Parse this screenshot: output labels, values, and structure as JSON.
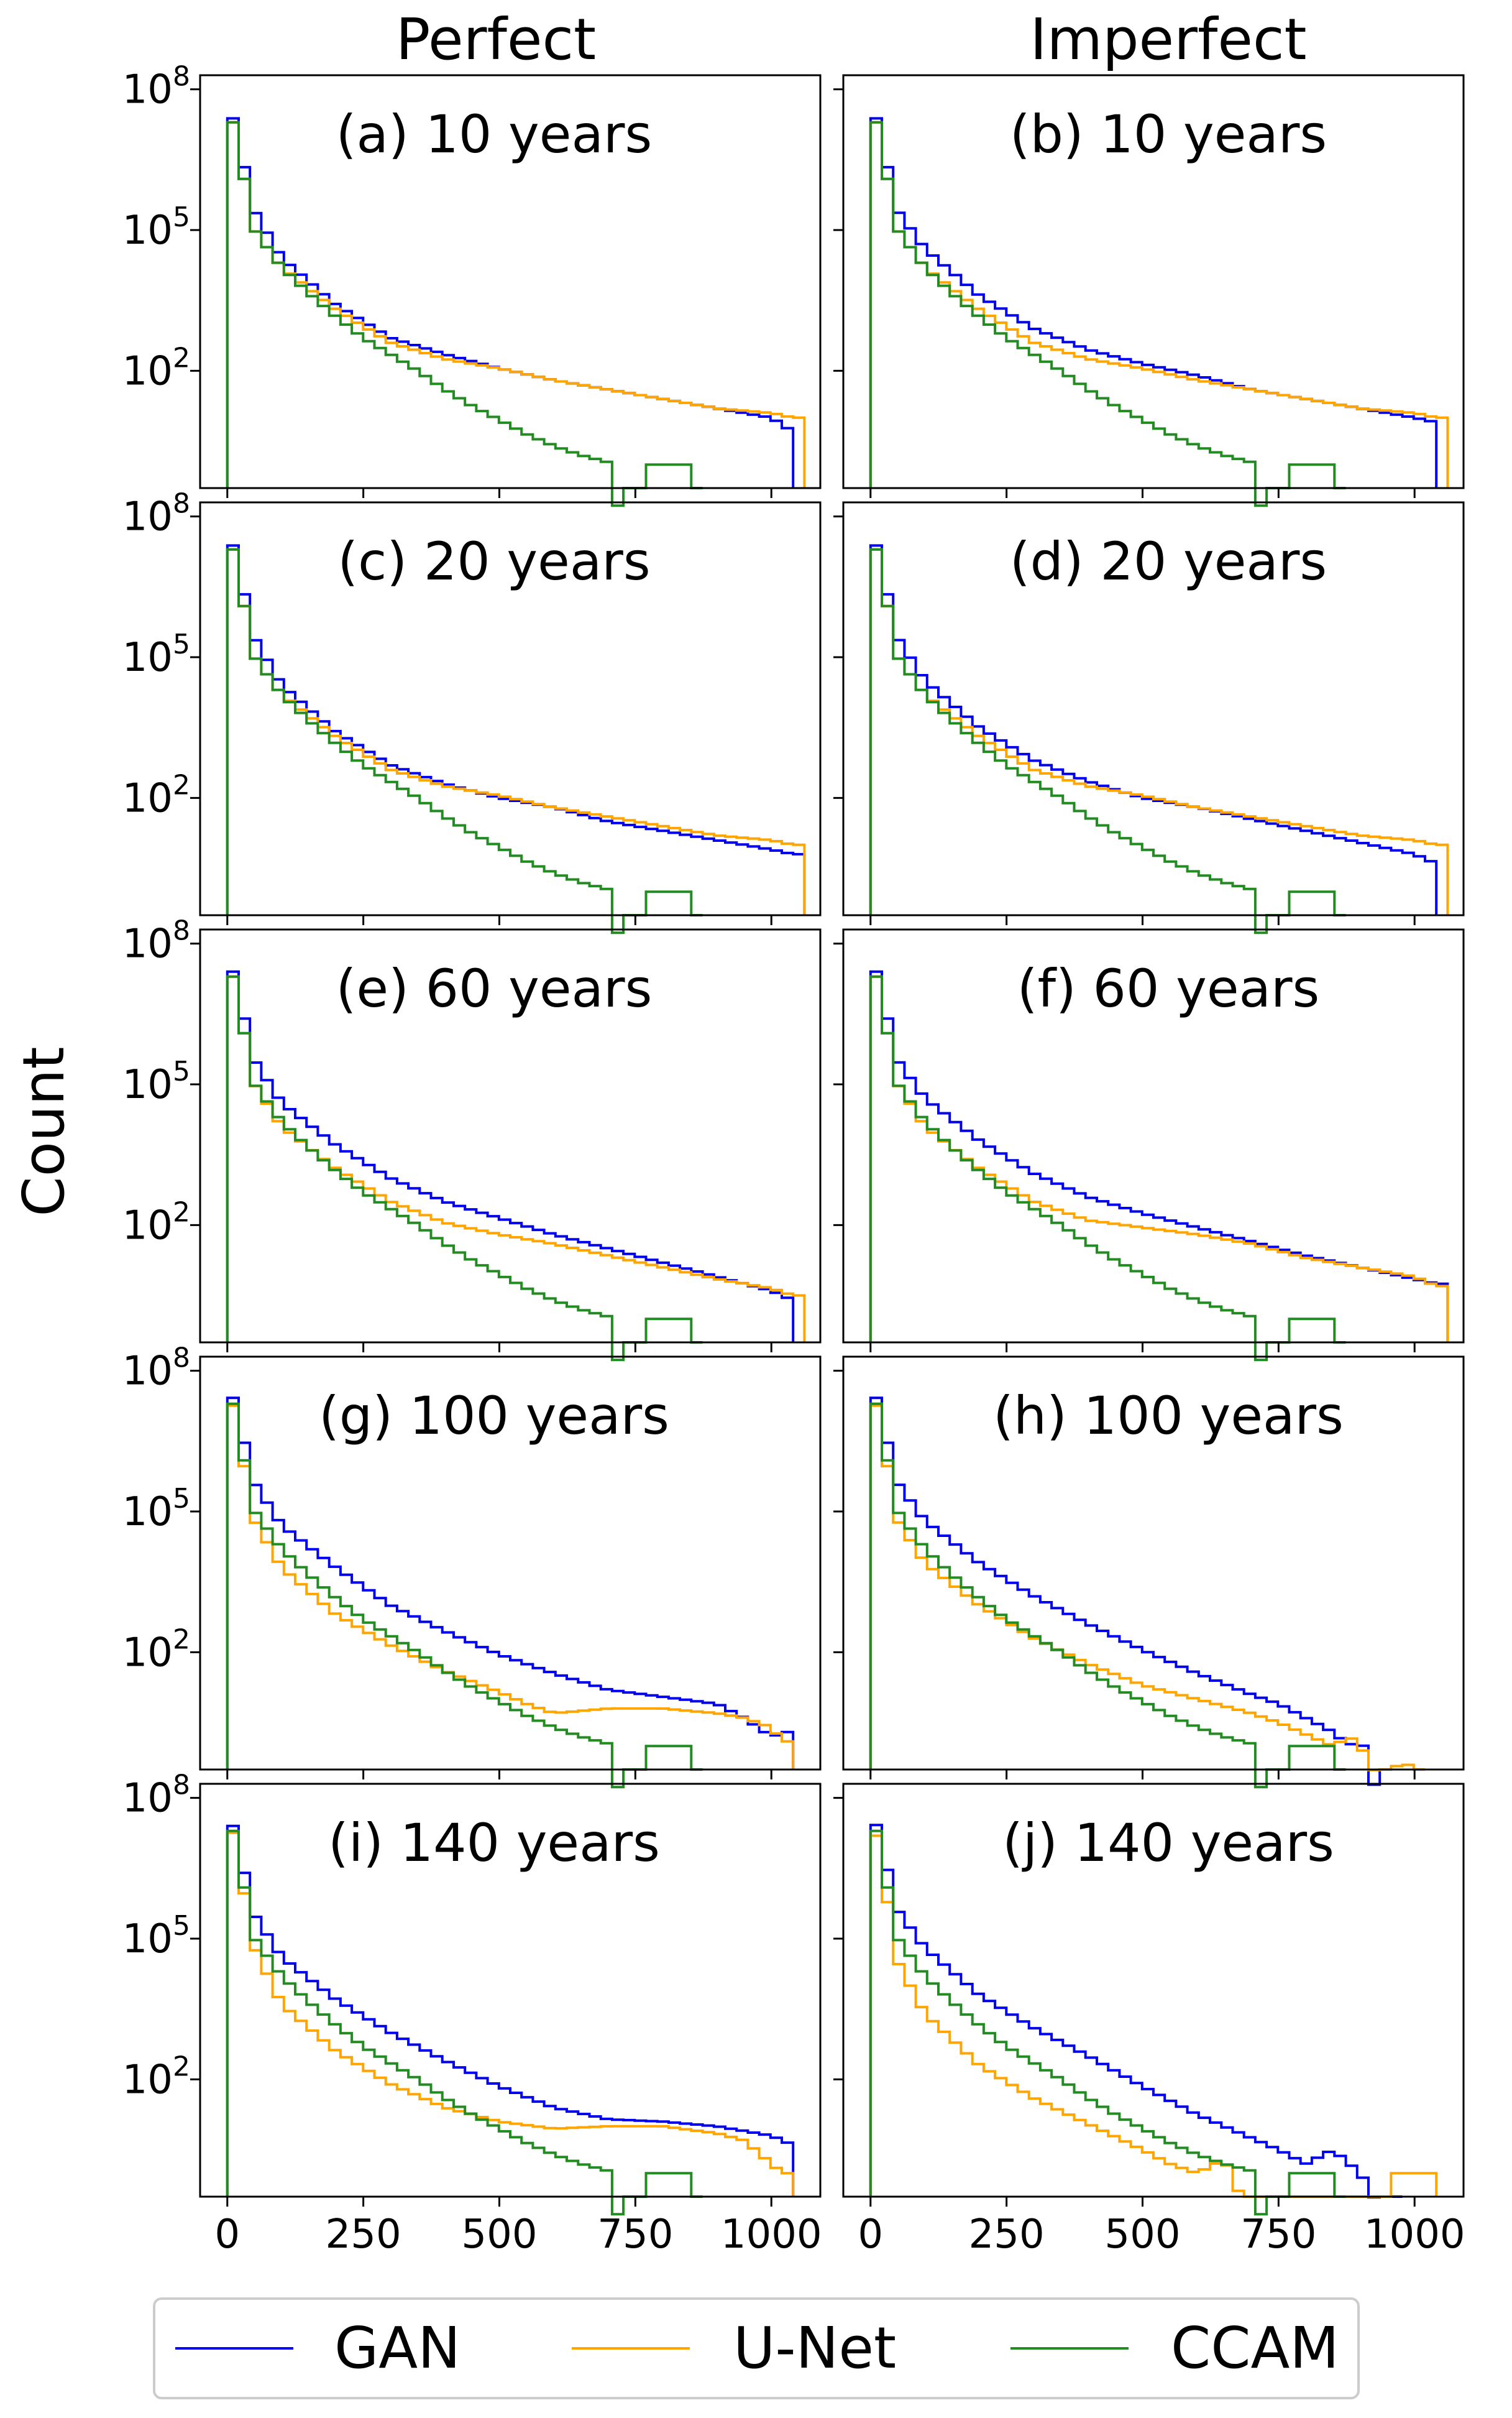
{
  "chart_data": {
    "type": "step-histogram",
    "column_titles": [
      "Perfect",
      "Imperfect"
    ],
    "ylabel": "Count",
    "yscale": "log",
    "ylim_log10": [
      -0.5,
      8.3
    ],
    "xlim": [
      -50,
      1090
    ],
    "xticks": [
      0,
      250,
      500,
      750,
      1000
    ],
    "yticks": [
      {
        "exp": 2,
        "label": "10",
        "sup": "2"
      },
      {
        "exp": 5,
        "label": "10",
        "sup": "5"
      },
      {
        "exp": 8,
        "label": "10",
        "sup": "8"
      }
    ],
    "bin_width": 20.8,
    "legend": [
      {
        "key": "gan",
        "label": "GAN",
        "color": "#0000ee"
      },
      {
        "key": "unet",
        "label": "U-Net",
        "color": "#ffa500"
      },
      {
        "key": "ccam",
        "label": "CCAM",
        "color": "#228b22"
      }
    ],
    "ccam_base": [
      [
        0,
        7.9
      ],
      [
        50,
        5.0
      ],
      [
        100,
        4.2
      ],
      [
        150,
        3.65
      ],
      [
        200,
        3.15
      ],
      [
        250,
        2.7
      ],
      [
        300,
        2.35
      ],
      [
        350,
        2.0
      ],
      [
        400,
        1.6
      ],
      [
        450,
        1.25
      ],
      [
        500,
        0.95
      ],
      [
        550,
        0.65
      ],
      [
        600,
        0.4
      ],
      [
        650,
        0.2
      ],
      [
        700,
        0.05
      ],
      [
        720,
        -1
      ]
    ],
    "ccam_sparse": [
      [
        770,
        0
      ],
      [
        790,
        0
      ],
      [
        800,
        0
      ],
      [
        810,
        0
      ],
      [
        820,
        0
      ],
      [
        840,
        0
      ]
    ],
    "panels": [
      {
        "label": "(a) 10 years",
        "col": 0,
        "row": 0,
        "gan": [
          [
            0,
            7.9
          ],
          [
            50,
            5.4
          ],
          [
            100,
            4.4
          ],
          [
            200,
            3.4
          ],
          [
            300,
            2.7
          ],
          [
            400,
            2.35
          ],
          [
            500,
            2.05
          ],
          [
            600,
            1.8
          ],
          [
            700,
            1.6
          ],
          [
            800,
            1.4
          ],
          [
            900,
            1.2
          ],
          [
            1000,
            1.0
          ],
          [
            1040,
            0.7
          ]
        ],
        "unet": [
          [
            0,
            7.9
          ],
          [
            50,
            5.0
          ],
          [
            100,
            4.2
          ],
          [
            200,
            3.3
          ],
          [
            300,
            2.6
          ],
          [
            400,
            2.25
          ],
          [
            500,
            2.05
          ],
          [
            600,
            1.8
          ],
          [
            700,
            1.6
          ],
          [
            800,
            1.4
          ],
          [
            900,
            1.2
          ],
          [
            1000,
            1.1
          ],
          [
            1040,
            1.0
          ]
        ],
        "gan_end": 1040,
        "unet_end": 1050
      },
      {
        "label": "(b) 10 years",
        "col": 1,
        "row": 0,
        "gan": [
          [
            0,
            7.9
          ],
          [
            50,
            5.4
          ],
          [
            100,
            4.6
          ],
          [
            200,
            3.6
          ],
          [
            300,
            2.9
          ],
          [
            400,
            2.45
          ],
          [
            500,
            2.15
          ],
          [
            600,
            1.9
          ],
          [
            700,
            1.6
          ],
          [
            800,
            1.4
          ],
          [
            900,
            1.2
          ],
          [
            1000,
            1.0
          ],
          [
            1040,
            0.9
          ]
        ],
        "unet": [
          [
            0,
            7.9
          ],
          [
            50,
            5.0
          ],
          [
            100,
            4.2
          ],
          [
            200,
            3.3
          ],
          [
            300,
            2.6
          ],
          [
            400,
            2.25
          ],
          [
            500,
            2.05
          ],
          [
            600,
            1.8
          ],
          [
            700,
            1.6
          ],
          [
            800,
            1.4
          ],
          [
            900,
            1.2
          ],
          [
            1000,
            1.1
          ],
          [
            1040,
            1.0
          ]
        ],
        "gan_end": 1040,
        "unet_end": 1050
      },
      {
        "label": "(c) 20 years",
        "col": 0,
        "row": 1,
        "gan": [
          [
            0,
            7.9
          ],
          [
            50,
            5.4
          ],
          [
            100,
            4.4
          ],
          [
            200,
            3.4
          ],
          [
            300,
            2.7
          ],
          [
            400,
            2.3
          ],
          [
            500,
            2.0
          ],
          [
            600,
            1.8
          ],
          [
            700,
            1.5
          ],
          [
            800,
            1.3
          ],
          [
            900,
            1.1
          ],
          [
            1000,
            0.9
          ],
          [
            1040,
            0.8
          ]
        ],
        "unet": [
          [
            0,
            7.9
          ],
          [
            50,
            5.0
          ],
          [
            100,
            4.2
          ],
          [
            200,
            3.3
          ],
          [
            300,
            2.6
          ],
          [
            400,
            2.25
          ],
          [
            500,
            2.05
          ],
          [
            600,
            1.8
          ],
          [
            700,
            1.6
          ],
          [
            800,
            1.4
          ],
          [
            900,
            1.2
          ],
          [
            1000,
            1.1
          ],
          [
            1040,
            1.0
          ]
        ],
        "gan_end": 1050,
        "unet_end": 1050
      },
      {
        "label": "(d) 20 years",
        "col": 1,
        "row": 1,
        "gan": [
          [
            0,
            7.9
          ],
          [
            50,
            5.4
          ],
          [
            100,
            4.5
          ],
          [
            200,
            3.5
          ],
          [
            300,
            2.8
          ],
          [
            400,
            2.35
          ],
          [
            500,
            2.0
          ],
          [
            600,
            1.8
          ],
          [
            700,
            1.55
          ],
          [
            800,
            1.3
          ],
          [
            900,
            1.05
          ],
          [
            1000,
            0.8
          ],
          [
            1040,
            0.6
          ]
        ],
        "unet": [
          [
            0,
            7.9
          ],
          [
            50,
            5.0
          ],
          [
            100,
            4.2
          ],
          [
            200,
            3.3
          ],
          [
            300,
            2.6
          ],
          [
            400,
            2.25
          ],
          [
            500,
            2.05
          ],
          [
            600,
            1.8
          ],
          [
            700,
            1.6
          ],
          [
            800,
            1.4
          ],
          [
            900,
            1.2
          ],
          [
            1000,
            1.1
          ],
          [
            1040,
            1.0
          ]
        ],
        "gan_end": 1040,
        "unet_end": 1050
      },
      {
        "label": "(e) 60 years",
        "col": 0,
        "row": 2,
        "gan": [
          [
            0,
            7.9
          ],
          [
            50,
            5.5
          ],
          [
            100,
            4.6
          ],
          [
            200,
            3.7
          ],
          [
            300,
            3.0
          ],
          [
            400,
            2.5
          ],
          [
            500,
            2.15
          ],
          [
            600,
            1.8
          ],
          [
            700,
            1.5
          ],
          [
            800,
            1.2
          ],
          [
            900,
            0.9
          ],
          [
            1000,
            0.6
          ],
          [
            1040,
            0.4
          ]
        ],
        "unet": [
          [
            0,
            7.9
          ],
          [
            50,
            5.0
          ],
          [
            100,
            4.1
          ],
          [
            200,
            3.2
          ],
          [
            300,
            2.5
          ],
          [
            400,
            2.05
          ],
          [
            500,
            1.8
          ],
          [
            600,
            1.6
          ],
          [
            700,
            1.35
          ],
          [
            800,
            1.1
          ],
          [
            900,
            0.85
          ],
          [
            1000,
            0.65
          ],
          [
            1040,
            0.5
          ]
        ],
        "gan_end": 1040,
        "unet_end": 1050
      },
      {
        "label": "(f) 60 years",
        "col": 1,
        "row": 2,
        "gan": [
          [
            0,
            7.9
          ],
          [
            50,
            5.5
          ],
          [
            100,
            4.7
          ],
          [
            200,
            3.8
          ],
          [
            300,
            3.1
          ],
          [
            400,
            2.6
          ],
          [
            500,
            2.25
          ],
          [
            600,
            1.95
          ],
          [
            700,
            1.65
          ],
          [
            800,
            1.35
          ],
          [
            900,
            1.1
          ],
          [
            1000,
            0.85
          ],
          [
            1040,
            0.75
          ]
        ],
        "unet": [
          [
            0,
            7.9
          ],
          [
            50,
            5.0
          ],
          [
            100,
            4.1
          ],
          [
            200,
            3.2
          ],
          [
            300,
            2.5
          ],
          [
            400,
            2.1
          ],
          [
            500,
            1.95
          ],
          [
            600,
            1.8
          ],
          [
            700,
            1.6
          ],
          [
            800,
            1.3
          ],
          [
            900,
            1.1
          ],
          [
            1000,
            0.9
          ],
          [
            1040,
            0.7
          ]
        ],
        "gan_end": 1050,
        "unet_end": 1050
      },
      {
        "label": "(g) 100 years",
        "col": 0,
        "row": 3,
        "gan": [
          [
            0,
            7.9
          ],
          [
            50,
            5.6
          ],
          [
            100,
            4.7
          ],
          [
            200,
            3.8
          ],
          [
            300,
            3.0
          ],
          [
            400,
            2.45
          ],
          [
            500,
            1.95
          ],
          [
            600,
            1.55
          ],
          [
            700,
            1.2
          ],
          [
            800,
            1.05
          ],
          [
            900,
            0.9
          ],
          [
            950,
            0.6
          ],
          [
            1000,
            0.2
          ],
          [
            1030,
            0.3
          ]
        ],
        "unet": [
          [
            0,
            7.9
          ],
          [
            50,
            4.8
          ],
          [
            100,
            3.8
          ],
          [
            200,
            2.8
          ],
          [
            300,
            2.15
          ],
          [
            400,
            1.6
          ],
          [
            500,
            1.15
          ],
          [
            550,
            0.9
          ],
          [
            600,
            0.7
          ],
          [
            700,
            0.8
          ],
          [
            800,
            0.8
          ],
          [
            900,
            0.7
          ],
          [
            950,
            0.6
          ],
          [
            1000,
            0.4
          ],
          [
            1020,
            0.1
          ]
        ],
        "gan_end": 1040,
        "unet_end": 1030
      },
      {
        "label": "(h) 100 years",
        "col": 1,
        "row": 3,
        "gan": [
          [
            0,
            7.9
          ],
          [
            50,
            5.6
          ],
          [
            100,
            4.8
          ],
          [
            200,
            3.9
          ],
          [
            300,
            3.2
          ],
          [
            400,
            2.6
          ],
          [
            500,
            2.05
          ],
          [
            600,
            1.55
          ],
          [
            700,
            1.1
          ],
          [
            750,
            0.9
          ],
          [
            800,
            0.6
          ],
          [
            850,
            0.3
          ],
          [
            880,
            0.0
          ],
          [
            900,
            0.2
          ],
          [
            930,
            -1
          ]
        ],
        "unet": [
          [
            0,
            7.9
          ],
          [
            50,
            4.8
          ],
          [
            100,
            3.9
          ],
          [
            200,
            3.0
          ],
          [
            300,
            2.3
          ],
          [
            400,
            1.75
          ],
          [
            500,
            1.3
          ],
          [
            600,
            1.0
          ],
          [
            700,
            0.7
          ],
          [
            750,
            0.5
          ],
          [
            800,
            0.25
          ],
          [
            850,
            0.0
          ],
          [
            880,
            0.2
          ],
          [
            900,
            0.0
          ],
          [
            950,
            -1
          ],
          [
            980,
            0.0
          ],
          [
            1000,
            -1
          ]
        ],
        "gan_end": 940,
        "unet_end": 1000
      },
      {
        "label": "(i) 140 years",
        "col": 0,
        "row": 4,
        "gan": [
          [
            0,
            7.9
          ],
          [
            50,
            5.5
          ],
          [
            100,
            4.6
          ],
          [
            200,
            3.7
          ],
          [
            300,
            3.0
          ],
          [
            400,
            2.4
          ],
          [
            500,
            1.85
          ],
          [
            600,
            1.4
          ],
          [
            700,
            1.15
          ],
          [
            800,
            1.1
          ],
          [
            900,
            1.0
          ],
          [
            1000,
            0.8
          ],
          [
            1040,
            0.6
          ]
        ],
        "unet": [
          [
            0,
            7.9
          ],
          [
            50,
            4.8
          ],
          [
            100,
            3.6
          ],
          [
            200,
            2.6
          ],
          [
            300,
            1.9
          ],
          [
            400,
            1.4
          ],
          [
            500,
            1.1
          ],
          [
            600,
            0.95
          ],
          [
            700,
            1.0
          ],
          [
            800,
            1.0
          ],
          [
            900,
            0.85
          ],
          [
            950,
            0.7
          ],
          [
            1000,
            0.2
          ],
          [
            1020,
            0.0
          ]
        ],
        "gan_end": 1040,
        "unet_end": 1020
      },
      {
        "label": "(j) 140 years",
        "col": 1,
        "row": 4,
        "gan": [
          [
            0,
            7.9
          ],
          [
            50,
            5.6
          ],
          [
            100,
            4.8
          ],
          [
            200,
            3.8
          ],
          [
            300,
            3.1
          ],
          [
            400,
            2.5
          ],
          [
            500,
            1.85
          ],
          [
            600,
            1.25
          ],
          [
            700,
            0.75
          ],
          [
            750,
            0.5
          ],
          [
            800,
            0.2
          ],
          [
            850,
            0.5
          ],
          [
            900,
            0.0
          ],
          [
            950,
            -1
          ]
        ],
        "unet": [
          [
            0,
            7.9
          ],
          [
            50,
            4.5
          ],
          [
            100,
            3.4
          ],
          [
            200,
            2.3
          ],
          [
            300,
            1.6
          ],
          [
            400,
            1.05
          ],
          [
            500,
            0.5
          ],
          [
            550,
            0.2
          ],
          [
            600,
            0.0
          ],
          [
            650,
            0.3
          ],
          [
            700,
            -1
          ],
          [
            950,
            -1
          ],
          [
            960,
            0.0
          ],
          [
            1040,
            0.0
          ]
        ],
        "gan_end": 960,
        "unet_end": 1040
      }
    ]
  }
}
